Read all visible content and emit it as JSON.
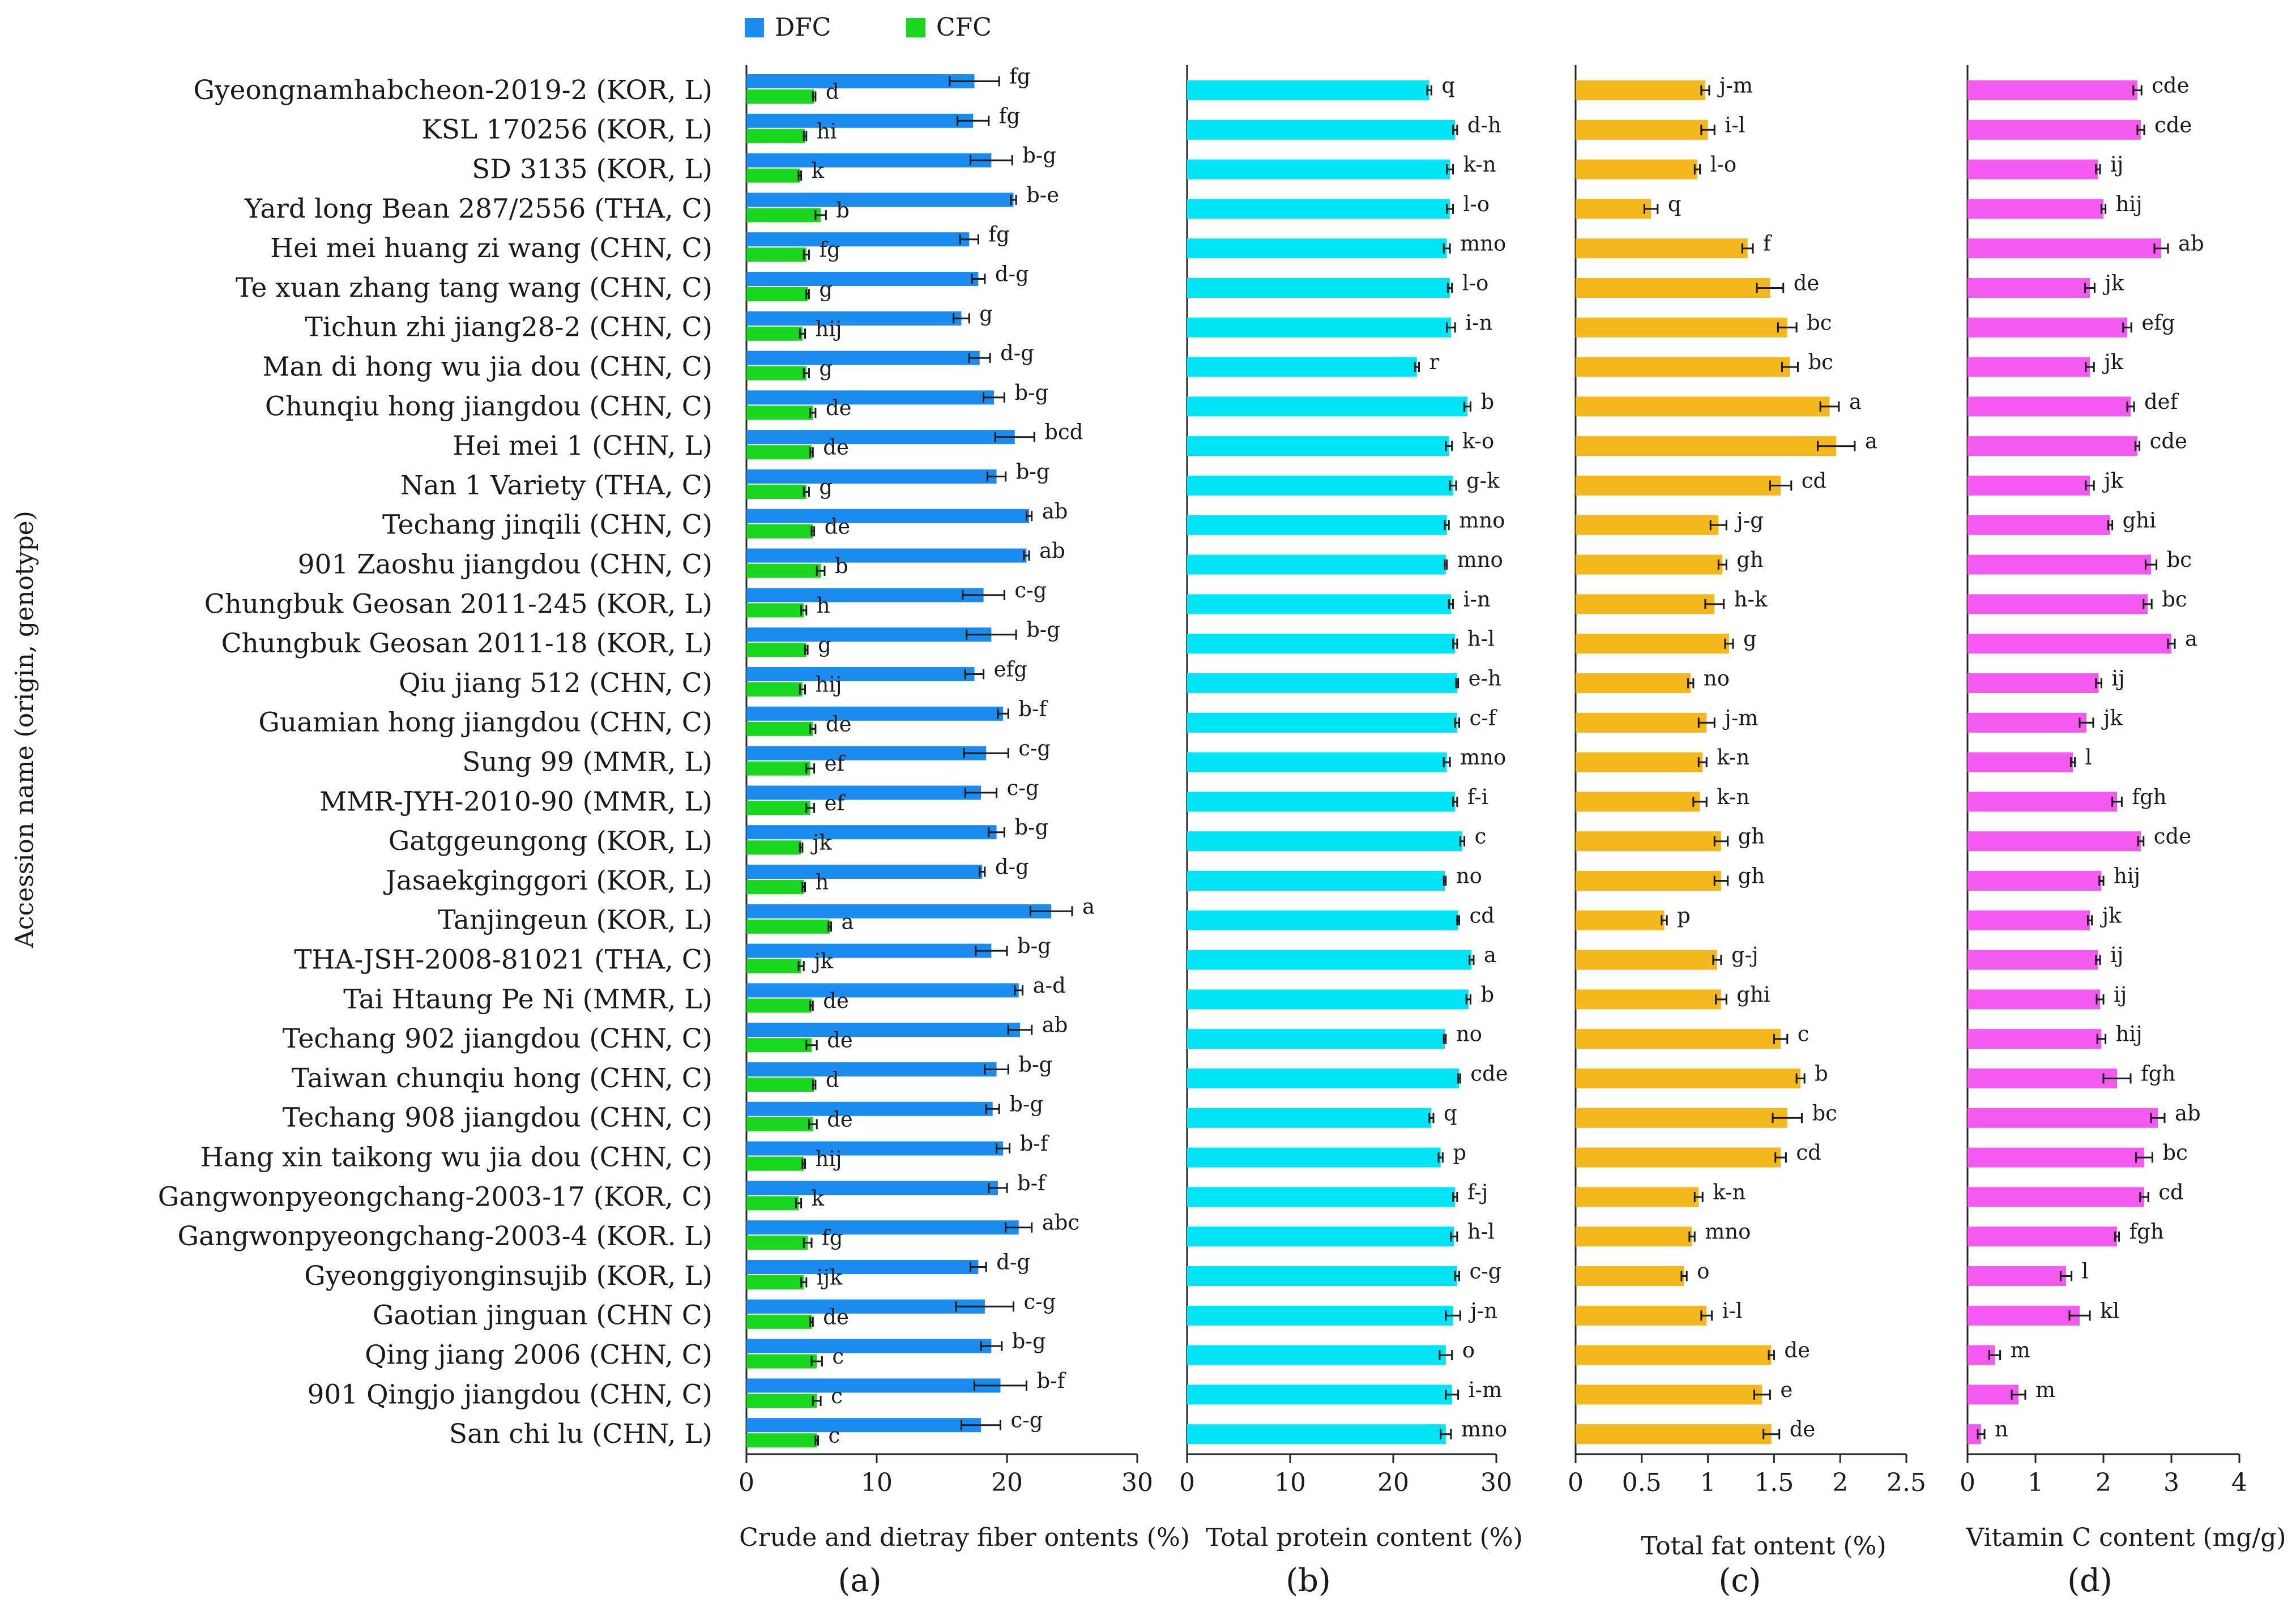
{
  "figure": {
    "y_axis_title": "Accession name (origin, genotype)",
    "legend": [
      {
        "name": "DFC",
        "color": "#1a8cf0"
      },
      {
        "name": "CFC",
        "color": "#19d61e"
      }
    ]
  },
  "chart_data": [
    {
      "type": "bar",
      "orientation": "horizontal",
      "panel_label": "(a)",
      "xlabel": "Crude and dietray fiber ontents (%)",
      "xlim": [
        0,
        30
      ],
      "xticks": [
        0,
        10,
        20,
        30
      ],
      "categories": [
        "Gyeongnamhabcheon-2019-2 (KOR, L)",
        "KSL 170256 (KOR, L)",
        "SD 3135 (KOR, L)",
        "Yard long Bean 287/2556 (THA, C)",
        "Hei mei huang zi wang (CHN, C)",
        "Te xuan zhang tang wang (CHN, C)",
        "Tichun zhi jiang28-2 (CHN, C)",
        "Man di hong wu jia dou (CHN, C)",
        "Chunqiu hong jiangdou (CHN, C)",
        "Hei mei 1 (CHN, L)",
        "Nan 1 Variety (THA, C)",
        "Techang jinqili (CHN, C)",
        "901 Zaoshu jiangdou (CHN, C)",
        "Chungbuk Geosan 2011-245 (KOR, L)",
        "Chungbuk Geosan 2011-18 (KOR, L)",
        "Qiu jiang 512 (CHN, C)",
        "Guamian hong jiangdou (CHN, C)",
        "Sung 99 (MMR, L)",
        "MMR-JYH-2010-90 (MMR, L)",
        "Gatggeungong (KOR, L)",
        "Jasaekginggori (KOR, L)",
        "Tanjingeun (KOR, L)",
        "THA-JSH-2008-81021 (THA, C)",
        "Tai Htaung Pe Ni (MMR, L)",
        "Techang 902 jiangdou (CHN, C)",
        "Taiwan chunqiu hong (CHN, C)",
        "Techang 908 jiangdou (CHN, C)",
        "Hang xin taikong wu jia dou (CHN, C)",
        "Gangwonpyeongchang-2003-17 (KOR, C)",
        "Gangwonpyeongchang-2003-4 (KOR. L)",
        "Gyeonggiyonginsujib (KOR, L)",
        "Gaotian jinguan (CHN C)",
        "Qing jiang 2006 (CHN, C)",
        "901 Qingjo jiangdou (CHN, C)",
        "San chi lu (CHN, L)"
      ],
      "series": [
        {
          "name": "DFC",
          "color": "#1a8cf0",
          "values": [
            17.5,
            17.4,
            18.8,
            20.5,
            17.1,
            17.8,
            16.5,
            17.9,
            19.0,
            20.6,
            19.2,
            21.7,
            21.5,
            18.2,
            18.8,
            17.5,
            19.7,
            18.4,
            18.0,
            19.2,
            18.1,
            23.4,
            18.8,
            20.9,
            21.0,
            19.2,
            18.9,
            19.7,
            19.3,
            20.9,
            17.8,
            18.3,
            18.8,
            19.5,
            18.0
          ],
          "errors": [
            1.9,
            1.2,
            1.6,
            0.2,
            0.7,
            0.5,
            0.6,
            0.8,
            0.8,
            1.5,
            0.7,
            0.2,
            0.2,
            1.6,
            1.9,
            0.7,
            0.4,
            1.7,
            1.2,
            0.6,
            0.2,
            1.6,
            1.2,
            0.3,
            0.9,
            0.9,
            0.5,
            0.5,
            0.7,
            1.0,
            0.6,
            2.2,
            0.8,
            2.0,
            1.5
          ],
          "letters": [
            "fg",
            "fg",
            "b-g",
            "b-e",
            "fg",
            "d-g",
            "g",
            "d-g",
            "b-g",
            "bcd",
            "b-g",
            "ab",
            "ab",
            "c-g",
            "b-g",
            "efg",
            "b-f",
            "c-g",
            "c-g",
            "b-g",
            "d-g",
            "a",
            "b-g",
            "a-d",
            "ab",
            "b-g",
            "b-g",
            "b-f",
            "b-f",
            "abc",
            "d-g",
            "c-g",
            "b-g",
            "b-f",
            "c-g"
          ]
        },
        {
          "name": "CFC",
          "color": "#19d61e",
          "values": [
            5.2,
            4.5,
            4.1,
            5.7,
            4.6,
            4.7,
            4.3,
            4.6,
            5.1,
            5.0,
            4.6,
            5.1,
            5.7,
            4.4,
            4.6,
            4.3,
            5.1,
            4.9,
            4.9,
            4.2,
            4.4,
            6.4,
            4.2,
            5.0,
            5.0,
            5.2,
            5.1,
            4.4,
            4.0,
            4.7,
            4.4,
            5.0,
            5.4,
            5.4,
            5.4
          ],
          "errors": [
            0.1,
            0.1,
            0.1,
            0.4,
            0.2,
            0.1,
            0.2,
            0.2,
            0.2,
            0.1,
            0.2,
            0.1,
            0.3,
            0.2,
            0.1,
            0.2,
            0.2,
            0.3,
            0.3,
            0.1,
            0.1,
            0.1,
            0.2,
            0.1,
            0.4,
            0.1,
            0.3,
            0.1,
            0.2,
            0.3,
            0.2,
            0.1,
            0.4,
            0.3,
            0.1
          ],
          "letters": [
            "d",
            "hi",
            "k",
            "b",
            "fg",
            "g",
            "hij",
            "g",
            "de",
            "de",
            "g",
            "de",
            "b",
            "h",
            "g",
            "hij",
            "de",
            "ef",
            "ef",
            "jk",
            "h",
            "a",
            "jk",
            "de",
            "de",
            "d",
            "de",
            "hij",
            "k",
            "fg",
            "ijk",
            "de",
            "c",
            "c",
            "c"
          ]
        }
      ]
    },
    {
      "type": "bar",
      "orientation": "horizontal",
      "panel_label": "(b)",
      "xlabel": "Total protein content (%)",
      "xlim": [
        0,
        30
      ],
      "xticks": [
        0,
        10,
        20,
        30
      ],
      "color": "#00e5f5",
      "values": [
        23.5,
        26.0,
        25.5,
        25.5,
        25.2,
        25.5,
        25.6,
        22.3,
        27.2,
        25.4,
        25.8,
        25.2,
        25.1,
        25.6,
        26.0,
        26.2,
        26.2,
        25.2,
        26.0,
        26.7,
        25.0,
        26.3,
        27.6,
        27.3,
        25.0,
        26.4,
        23.7,
        24.6,
        26.0,
        25.9,
        26.2,
        25.8,
        25.1,
        25.7,
        25.1
      ],
      "errors": [
        0.2,
        0.2,
        0.3,
        0.3,
        0.3,
        0.2,
        0.4,
        0.2,
        0.3,
        0.3,
        0.3,
        0.2,
        0.1,
        0.2,
        0.2,
        0.1,
        0.2,
        0.3,
        0.2,
        0.2,
        0.1,
        0.1,
        0.2,
        0.2,
        0.1,
        0.1,
        0.2,
        0.2,
        0.2,
        0.3,
        0.2,
        0.7,
        0.6,
        0.6,
        0.5
      ],
      "letters": [
        "q",
        "d-h",
        "k-n",
        "l-o",
        "mno",
        "l-o",
        "i-n",
        "r",
        "b",
        "k-o",
        "g-k",
        "mno",
        "mno",
        "i-n",
        "h-l",
        "e-h",
        "c-f",
        "mno",
        "f-i",
        "c",
        "no",
        "cd",
        "a",
        "b",
        "no",
        "cde",
        "q",
        "p",
        "f-j",
        "h-l",
        "c-g",
        "j-n",
        "o",
        "i-m",
        "mno"
      ]
    },
    {
      "type": "bar",
      "orientation": "horizontal",
      "panel_label": "(c)",
      "xlabel": "Total fat ontent (%)",
      "xlim": [
        0,
        2.5
      ],
      "xticks": [
        0,
        0.5,
        1,
        1.5,
        2,
        2.5
      ],
      "color": "#f5b81c",
      "values": [
        0.98,
        1.0,
        0.92,
        0.57,
        1.3,
        1.47,
        1.6,
        1.62,
        1.92,
        1.97,
        1.55,
        1.08,
        1.11,
        1.05,
        1.16,
        0.87,
        0.99,
        0.96,
        0.94,
        1.1,
        1.1,
        0.67,
        1.07,
        1.1,
        1.55,
        1.7,
        1.6,
        1.55,
        0.93,
        0.88,
        0.82,
        0.99,
        1.48,
        1.41,
        1.48
      ],
      "errors": [
        0.03,
        0.05,
        0.02,
        0.05,
        0.04,
        0.1,
        0.07,
        0.06,
        0.07,
        0.14,
        0.08,
        0.06,
        0.03,
        0.07,
        0.03,
        0.02,
        0.06,
        0.03,
        0.05,
        0.05,
        0.05,
        0.02,
        0.03,
        0.04,
        0.05,
        0.03,
        0.11,
        0.04,
        0.03,
        0.02,
        0.02,
        0.04,
        0.02,
        0.06,
        0.06
      ],
      "letters": [
        "j-m",
        "i-l",
        "l-o",
        "q",
        "f",
        "de",
        "bc",
        "bc",
        "a",
        "a",
        "cd",
        "j-g",
        "gh",
        "h-k",
        "g",
        "no",
        "j-m",
        "k-n",
        "k-n",
        "gh",
        "gh",
        "p",
        "g-j",
        "ghi",
        "c",
        "b",
        "bc",
        "cd",
        "k-n",
        "mno",
        "o",
        "i-l",
        "de",
        "e",
        "de"
      ]
    },
    {
      "type": "bar",
      "orientation": "horizontal",
      "panel_label": "(d)",
      "xlabel": "Vitamin C content (mg/g)",
      "xlim": [
        0,
        4
      ],
      "xticks": [
        0,
        1,
        2,
        3,
        4
      ],
      "color": "#f55af0",
      "values": [
        2.5,
        2.55,
        1.92,
        2.0,
        2.85,
        1.8,
        2.35,
        1.8,
        2.4,
        2.5,
        1.8,
        2.1,
        2.7,
        2.65,
        3.0,
        1.93,
        1.75,
        1.55,
        2.2,
        2.55,
        1.97,
        1.8,
        1.92,
        1.95,
        1.97,
        2.2,
        2.8,
        2.6,
        2.6,
        2.2,
        1.45,
        1.65,
        0.4,
        0.75,
        0.2
      ],
      "errors": [
        0.06,
        0.05,
        0.03,
        0.03,
        0.1,
        0.07,
        0.06,
        0.06,
        0.05,
        0.03,
        0.06,
        0.03,
        0.08,
        0.06,
        0.05,
        0.04,
        0.1,
        0.03,
        0.07,
        0.04,
        0.03,
        0.03,
        0.03,
        0.05,
        0.06,
        0.2,
        0.1,
        0.12,
        0.06,
        0.03,
        0.08,
        0.15,
        0.08,
        0.1,
        0.05
      ],
      "letters": [
        "cde",
        "cde",
        "ij",
        "hij",
        "ab",
        "jk",
        "efg",
        "jk",
        "def",
        "cde",
        "jk",
        "ghi",
        "bc",
        "bc",
        "a",
        "ij",
        "jk",
        "l",
        "fgh",
        "cde",
        "hij",
        "jk",
        "ij",
        "ij",
        "hij",
        "fgh",
        "ab",
        "bc",
        "cd",
        "fgh",
        "l",
        "kl",
        "m",
        "m",
        "n"
      ]
    }
  ]
}
